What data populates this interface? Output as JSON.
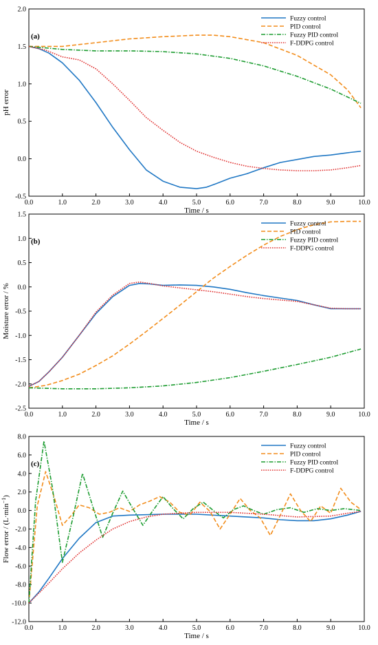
{
  "chart_data": [
    {
      "type": "line",
      "panel_label": "(a)",
      "xlabel": "Time / s",
      "ylabel": "pH error",
      "xlim": [
        0,
        10
      ],
      "ylim": [
        -0.5,
        2.0
      ],
      "xticks": [
        "0.0",
        "1.0",
        "2.0",
        "3.0",
        "4.0",
        "5.0",
        "6.0",
        "7.0",
        "8.0",
        "9.0",
        "10.0"
      ],
      "yticks": [
        "-0.5",
        "0.0",
        "0.5",
        "1.0",
        "1.5",
        "2.0"
      ],
      "legend_position": "top-right",
      "series": [
        {
          "name": "Fuzzy control",
          "color": "#1f77c4",
          "dash": "solid",
          "x": [
            0,
            0.3,
            0.6,
            1.0,
            1.5,
            2.0,
            2.5,
            3.0,
            3.5,
            4.0,
            4.5,
            5.0,
            5.3,
            5.6,
            6.0,
            6.5,
            7.0,
            7.5,
            8.0,
            8.5,
            9.0,
            9.5,
            9.9
          ],
          "y": [
            1.5,
            1.47,
            1.41,
            1.28,
            1.05,
            0.75,
            0.42,
            0.12,
            -0.15,
            -0.3,
            -0.38,
            -0.4,
            -0.38,
            -0.33,
            -0.26,
            -0.2,
            -0.12,
            -0.05,
            -0.01,
            0.03,
            0.05,
            0.08,
            0.1
          ]
        },
        {
          "name": "PID control",
          "color": "#f28c1a",
          "dash": "dashed",
          "x": [
            0,
            1,
            2,
            3,
            4,
            5,
            5.5,
            6,
            7,
            8,
            9,
            9.5,
            9.9
          ],
          "y": [
            1.5,
            1.5,
            1.55,
            1.6,
            1.63,
            1.65,
            1.65,
            1.63,
            1.55,
            1.38,
            1.12,
            0.92,
            0.68
          ]
        },
        {
          "name": "Fuzzy PID control",
          "color": "#1a9b2e",
          "dash": "dashdot",
          "x": [
            0,
            1,
            2,
            3,
            4,
            5,
            6,
            7,
            8,
            9,
            9.9
          ],
          "y": [
            1.5,
            1.46,
            1.44,
            1.44,
            1.43,
            1.4,
            1.34,
            1.24,
            1.1,
            0.93,
            0.74
          ]
        },
        {
          "name": "F-DDPG control",
          "color": "#e0302f",
          "dash": "dotted",
          "x": [
            0,
            0.5,
            1,
            1.5,
            2,
            2.5,
            3,
            3.5,
            4,
            4.5,
            5,
            5.5,
            6,
            6.5,
            7,
            7.5,
            8,
            8.5,
            9,
            9.5,
            9.9
          ],
          "y": [
            1.5,
            1.45,
            1.36,
            1.32,
            1.2,
            1.0,
            0.78,
            0.55,
            0.38,
            0.22,
            0.1,
            0.02,
            -0.05,
            -0.1,
            -0.13,
            -0.15,
            -0.16,
            -0.16,
            -0.15,
            -0.12,
            -0.09
          ]
        }
      ]
    },
    {
      "type": "line",
      "panel_label": "(b)",
      "xlabel": "Time / s",
      "ylabel": "Moisture error / %",
      "xlim": [
        0,
        10
      ],
      "ylim": [
        -2.5,
        1.5
      ],
      "xticks": [
        "0.0",
        "1.0",
        "2.0",
        "3.0",
        "4.0",
        "5.0",
        "6.0",
        "7.0",
        "8.0",
        "9.0",
        "10.0"
      ],
      "yticks": [
        "-2.5",
        "-2.0",
        "-1.5",
        "-1.0",
        "-0.5",
        "0.0",
        "0.5",
        "1.0",
        "1.5"
      ],
      "legend_position": "top-right",
      "series": [
        {
          "name": "Fuzzy control",
          "color": "#1f77c4",
          "dash": "solid",
          "x": [
            0,
            0.3,
            0.6,
            1,
            1.5,
            2,
            2.5,
            3,
            3.3,
            3.6,
            4,
            4.5,
            5,
            5.5,
            6,
            6.5,
            7,
            7.5,
            8,
            8.5,
            9,
            9.5,
            9.9
          ],
          "y": [
            -2.05,
            -1.95,
            -1.75,
            -1.45,
            -1.0,
            -0.55,
            -0.2,
            0.03,
            0.07,
            0.06,
            0.03,
            0.04,
            0.03,
            0.0,
            -0.05,
            -0.12,
            -0.18,
            -0.23,
            -0.28,
            -0.37,
            -0.45,
            -0.45,
            -0.45
          ]
        },
        {
          "name": "PID control",
          "color": "#f28c1a",
          "dash": "dashed",
          "x": [
            0,
            0.5,
            1,
            1.5,
            2,
            2.5,
            3,
            3.5,
            4,
            4.5,
            5,
            5.5,
            6,
            6.5,
            7,
            7.5,
            8,
            8.5,
            9,
            9.5,
            9.9
          ],
          "y": [
            -2.08,
            -2.03,
            -1.93,
            -1.8,
            -1.62,
            -1.42,
            -1.18,
            -0.92,
            -0.65,
            -0.38,
            -0.1,
            0.18,
            0.42,
            0.65,
            0.86,
            1.04,
            1.18,
            1.28,
            1.34,
            1.35,
            1.35
          ]
        },
        {
          "name": "Fuzzy PID control",
          "color": "#1a9b2e",
          "dash": "dashdot",
          "x": [
            0,
            1,
            2,
            3,
            4,
            5,
            6,
            7,
            8,
            9,
            9.9
          ],
          "y": [
            -2.08,
            -2.1,
            -2.1,
            -2.08,
            -2.04,
            -1.97,
            -1.87,
            -1.74,
            -1.6,
            -1.45,
            -1.28
          ]
        },
        {
          "name": "F-DDPG control",
          "color": "#e0302f",
          "dash": "dotted",
          "x": [
            0,
            0.3,
            0.6,
            1,
            1.5,
            2,
            2.5,
            3,
            3.3,
            3.6,
            4,
            4.5,
            5,
            5.5,
            6,
            6.5,
            7,
            7.5,
            8,
            8.5,
            9,
            9.5,
            9.9
          ],
          "y": [
            -2.05,
            -1.95,
            -1.75,
            -1.45,
            -1.0,
            -0.52,
            -0.17,
            0.07,
            0.1,
            0.07,
            0.02,
            -0.02,
            -0.06,
            -0.1,
            -0.15,
            -0.2,
            -0.24,
            -0.27,
            -0.3,
            -0.37,
            -0.44,
            -0.45,
            -0.45
          ]
        }
      ]
    },
    {
      "type": "line",
      "panel_label": "(c)",
      "xlabel": "Time / s",
      "ylabel": "Flow error / (L·min",
      "ylabel_sup": "−1",
      "ylabel_end": ")",
      "xlim": [
        0,
        10
      ],
      "ylim": [
        -12,
        8
      ],
      "xticks": [
        "0.0",
        "1.0",
        "2.0",
        "3.0",
        "4.0",
        "5.0",
        "6.0",
        "7.0",
        "8.0",
        "9.0",
        "10.0"
      ],
      "yticks": [
        "-12.0",
        "-10.0",
        "-8.0",
        "-6.0",
        "-4.0",
        "-2.0",
        "0.0",
        "2.0",
        "4.0",
        "6.0",
        "8.0"
      ],
      "legend_position": "top-right",
      "series": [
        {
          "name": "Fuzzy control",
          "color": "#1f77c4",
          "dash": "solid",
          "x": [
            0,
            0.3,
            0.6,
            1,
            1.5,
            2,
            2.5,
            3,
            4,
            5,
            6,
            7,
            7.5,
            8,
            8.5,
            9,
            9.5,
            9.9
          ],
          "y": [
            -10,
            -8.8,
            -7.3,
            -5.2,
            -3.0,
            -1.3,
            -0.6,
            -0.5,
            -0.4,
            -0.4,
            -0.6,
            -0.8,
            -1.0,
            -1.1,
            -1.1,
            -0.9,
            -0.5,
            -0.1
          ]
        },
        {
          "name": "PID control",
          "color": "#f28c1a",
          "dash": "dashed",
          "x": [
            0,
            0.25,
            0.5,
            0.75,
            1.0,
            1.25,
            1.5,
            1.8,
            2.1,
            2.4,
            2.7,
            3.0,
            3.3,
            3.6,
            3.9,
            4.2,
            4.5,
            4.8,
            5.1,
            5.4,
            5.7,
            6.0,
            6.3,
            6.6,
            6.9,
            7.2,
            7.5,
            7.8,
            8.1,
            8.4,
            8.7,
            9.0,
            9.3,
            9.6,
            9.9
          ],
          "y": [
            -10,
            0.5,
            4.2,
            1.5,
            -1.6,
            -0.6,
            0.6,
            0.3,
            -0.4,
            -0.2,
            0.3,
            -0.1,
            0.6,
            1.0,
            1.5,
            0.9,
            -0.2,
            -0.5,
            0.9,
            -0.1,
            -2.0,
            -0.4,
            1.3,
            0.0,
            -0.8,
            -2.7,
            -0.5,
            1.8,
            0.0,
            -1.2,
            0.5,
            -0.3,
            2.4,
            0.9,
            0.1
          ]
        },
        {
          "name": "Fuzzy PID control",
          "color": "#1a9b2e",
          "dash": "dashdot",
          "x": [
            0,
            0.2,
            0.45,
            0.7,
            1.0,
            1.3,
            1.6,
            1.9,
            2.2,
            2.5,
            2.8,
            3.1,
            3.4,
            3.7,
            4.0,
            4.3,
            4.6,
            4.9,
            5.2,
            5.5,
            5.8,
            6.1,
            6.4,
            6.7,
            7.0,
            7.4,
            7.8,
            8.2,
            8.6,
            9.0,
            9.4,
            9.9
          ],
          "y": [
            -10,
            1.0,
            7.5,
            2.5,
            -5.6,
            -1.0,
            4.0,
            0.5,
            -2.9,
            -0.3,
            2.1,
            0.2,
            -1.6,
            0.0,
            1.5,
            0.2,
            -0.9,
            0.2,
            0.9,
            0.0,
            -0.8,
            0.1,
            0.5,
            0.0,
            -0.4,
            0.1,
            0.3,
            -0.2,
            0.2,
            0.0,
            0.2,
            0.0
          ]
        },
        {
          "name": "F-DDPG control",
          "color": "#e0302f",
          "dash": "dotted",
          "x": [
            0,
            0.5,
            1,
            1.5,
            2,
            2.5,
            3,
            3.5,
            4,
            5,
            6,
            7,
            8,
            9,
            9.5,
            9.9
          ],
          "y": [
            -10,
            -8.2,
            -6.3,
            -4.6,
            -3.2,
            -2.0,
            -1.2,
            -0.7,
            -0.4,
            -0.2,
            -0.2,
            -0.4,
            -0.7,
            -0.6,
            -0.3,
            -0.1
          ]
        }
      ]
    }
  ]
}
